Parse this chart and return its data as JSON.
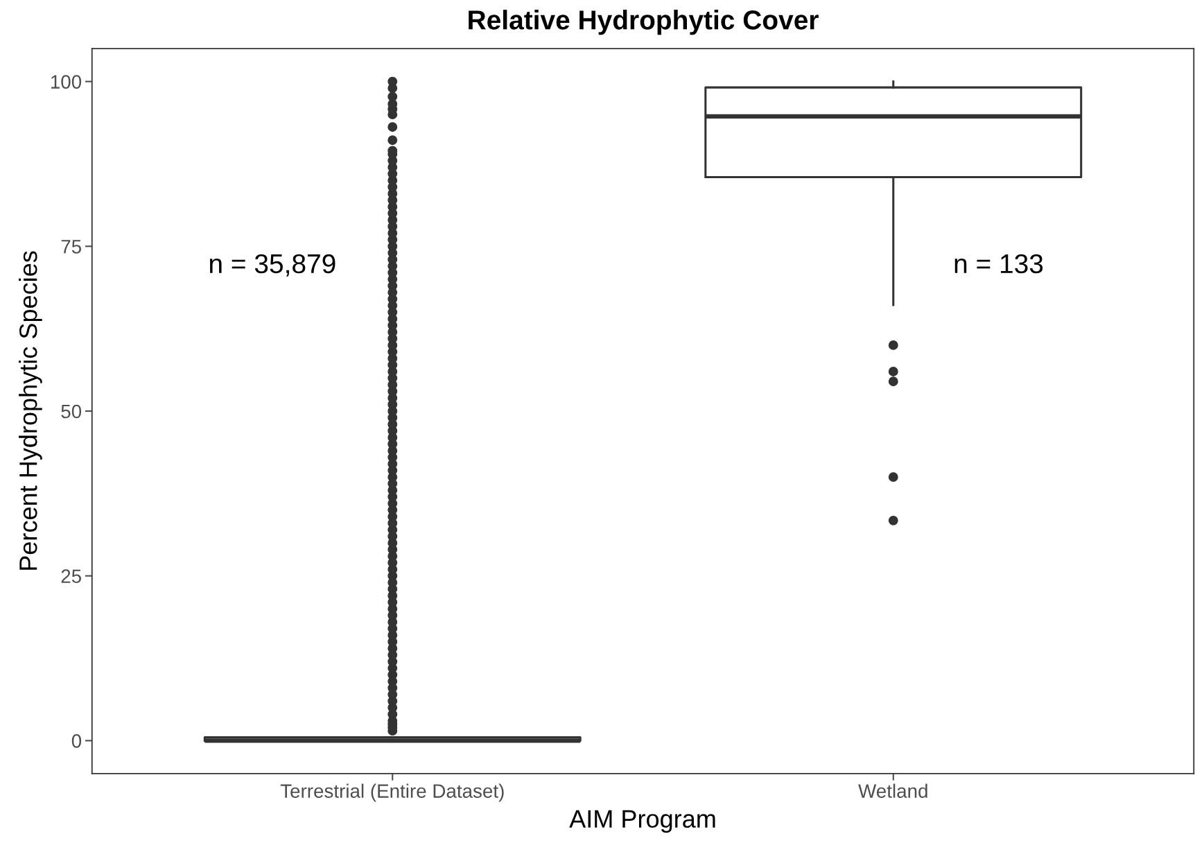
{
  "chart_data": {
    "type": "box",
    "title": "Relative Hydrophytic Cover",
    "xlabel": "AIM Program",
    "ylabel": "Percent Hydrophytic Species",
    "categories": [
      "Terrestrial (Entire Dataset)",
      "Wetland"
    ],
    "boxes": [
      {
        "q1": 0,
        "median": 0,
        "q3": 0.5,
        "outliers": [
          1.5,
          2,
          2.5,
          3,
          4,
          5,
          6,
          7,
          8,
          9,
          10,
          11,
          12,
          13,
          14,
          15,
          16,
          17,
          18,
          19,
          20,
          21,
          22,
          23,
          24,
          25,
          26,
          27,
          28,
          29,
          30,
          31,
          32,
          33,
          34,
          35,
          36,
          37,
          38,
          39,
          40,
          41,
          42,
          43,
          44,
          45,
          46,
          47,
          48,
          49,
          50,
          51,
          52,
          53,
          54,
          55,
          56,
          57,
          58,
          59,
          60,
          61,
          62,
          63,
          64,
          65,
          66,
          67,
          68,
          69,
          70,
          71,
          72,
          73,
          74,
          75,
          76,
          77,
          78,
          79,
          80,
          81,
          82,
          83,
          84,
          85,
          86,
          87,
          88,
          89,
          89.5,
          91.1,
          93.1,
          95,
          95.8,
          96.6,
          97.7,
          99,
          100
        ]
      },
      {
        "low": 66.1,
        "q1": 85.5,
        "median": 94.7,
        "q3": 99.1,
        "high": 100,
        "outliers": [
          60.0,
          56.0,
          54.5,
          40.0,
          33.4
        ]
      }
    ],
    "color": "#333333",
    "annotations": [
      "n = 35,879",
      "n = 133"
    ],
    "ylim": [
      -5,
      105
    ],
    "yticks": [
      0,
      25,
      50,
      75,
      100
    ],
    "grid": false,
    "legend": false
  }
}
